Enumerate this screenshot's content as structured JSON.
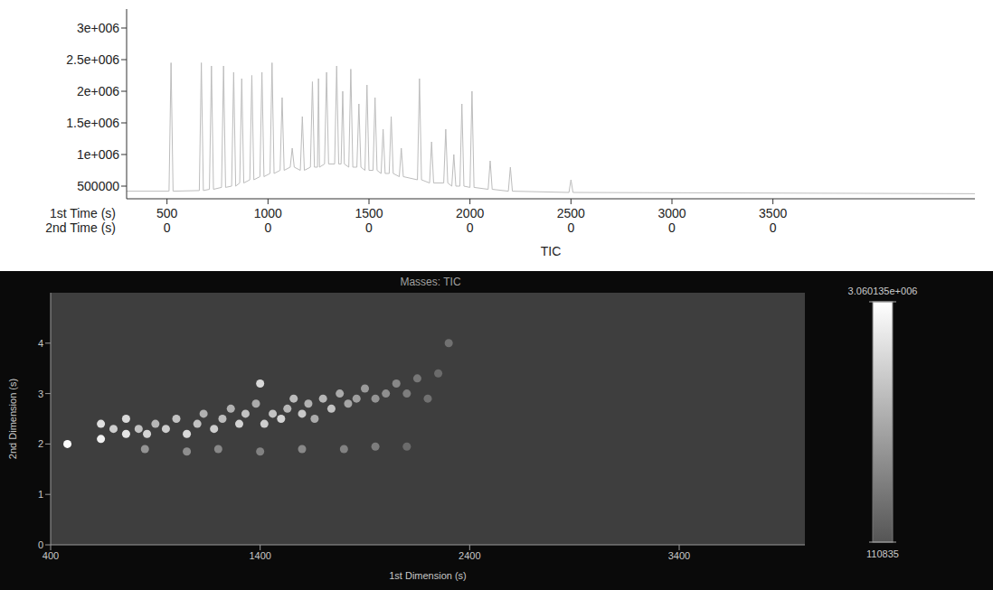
{
  "chart_data": [
    {
      "type": "line",
      "x": [
        300,
        510,
        520,
        530,
        660,
        670,
        680,
        710,
        720,
        730,
        770,
        780,
        790,
        820,
        830,
        840,
        860,
        870,
        880,
        910,
        920,
        930,
        960,
        970,
        980,
        1010,
        1020,
        1030,
        1060,
        1070,
        1080,
        1110,
        1120,
        1130,
        1160,
        1170,
        1180,
        1210,
        1220,
        1230,
        1245,
        1250,
        1255,
        1280,
        1290,
        1300,
        1330,
        1340,
        1350,
        1362,
        1370,
        1378,
        1400,
        1410,
        1420,
        1440,
        1450,
        1460,
        1480,
        1490,
        1500,
        1520,
        1530,
        1540,
        1560,
        1570,
        1580,
        1600,
        1610,
        1620,
        1650,
        1660,
        1670,
        1740,
        1750,
        1760,
        1800,
        1810,
        1820,
        1870,
        1880,
        1890,
        1910,
        1920,
        1930,
        1950,
        1960,
        1970,
        2000,
        2010,
        2020,
        2090,
        2100,
        2110,
        2190,
        2200,
        2210,
        2490,
        2500,
        2510,
        4500
      ],
      "values": [
        420000,
        420000,
        2450000,
        420000,
        430000,
        2450000,
        430000,
        450000,
        2400000,
        450000,
        480000,
        2400000,
        480000,
        500000,
        2300000,
        500000,
        550000,
        2200000,
        550000,
        600000,
        2250000,
        600000,
        650000,
        2300000,
        650000,
        700000,
        2450000,
        700000,
        750000,
        1900000,
        750000,
        800000,
        1100000,
        800000,
        750000,
        1600000,
        750000,
        800000,
        2150000,
        800000,
        800000,
        2200000,
        800000,
        850000,
        2300000,
        850000,
        850000,
        2400000,
        850000,
        850000,
        2000000,
        850000,
        800000,
        2350000,
        800000,
        800000,
        1800000,
        800000,
        750000,
        2100000,
        750000,
        750000,
        1900000,
        750000,
        700000,
        1400000,
        700000,
        700000,
        1600000,
        700000,
        650000,
        1100000,
        650000,
        600000,
        2200000,
        600000,
        550000,
        1200000,
        550000,
        550000,
        1400000,
        550000,
        500000,
        1000000,
        500000,
        500000,
        1800000,
        500000,
        480000,
        2000000,
        480000,
        450000,
        900000,
        450000,
        420000,
        800000,
        420000,
        400000,
        600000,
        400000,
        380000
      ],
      "color": "#bdbdbd",
      "xlim": [
        300,
        4500
      ],
      "xticks": [
        500,
        1000,
        1500,
        2000,
        2500,
        3000,
        3500
      ],
      "x_second_row": [
        0,
        0,
        0,
        0,
        0,
        0,
        0
      ],
      "x_row_labels": [
        "1st Time (s)",
        "2nd Time (s)"
      ],
      "xlabel": "TIC",
      "ylim": [
        300000,
        3300000
      ],
      "yticks": [
        500000,
        {
          "value": 1000000,
          "label": "1e+006"
        },
        {
          "value": 1500000,
          "label": "1.5e+006"
        },
        {
          "value": 2000000,
          "label": "2e+006"
        },
        {
          "value": 2500000,
          "label": "2.5e+006"
        },
        {
          "value": 3000000,
          "label": "3e+006"
        }
      ],
      "grid": false
    },
    {
      "type": "scatter",
      "title": "Masses: TIC",
      "xlabel": "1st Dimension (s)",
      "ylabel": "2nd Dimension (s)",
      "x": [
        480,
        640,
        640,
        700,
        760,
        760,
        820,
        860,
        900,
        950,
        1000,
        1050,
        1100,
        1130,
        1180,
        1220,
        1260,
        1300,
        1330,
        1380,
        1400,
        1420,
        1460,
        1500,
        1530,
        1560,
        1600,
        1630,
        1660,
        1700,
        1740,
        1780,
        1820,
        1860,
        1900,
        1950,
        2000,
        2050,
        2100,
        2150,
        2250,
        2300,
        2200,
        850,
        1050,
        1200,
        1400,
        1600,
        1800,
        1950,
        2100
      ],
      "y": [
        2.0,
        2.4,
        2.1,
        2.3,
        2.5,
        2.2,
        2.3,
        2.2,
        2.4,
        2.3,
        2.5,
        2.2,
        2.4,
        2.6,
        2.3,
        2.5,
        2.7,
        2.4,
        2.6,
        2.8,
        3.2,
        2.4,
        2.6,
        2.5,
        2.7,
        2.9,
        2.6,
        2.8,
        2.5,
        2.9,
        2.7,
        3.0,
        2.8,
        2.9,
        3.1,
        2.9,
        3.0,
        3.2,
        3.0,
        3.3,
        3.4,
        4.0,
        2.9,
        1.9,
        1.85,
        1.9,
        1.85,
        1.9,
        1.9,
        1.95,
        1.95
      ],
      "intensity": [
        3000000,
        2500000,
        2800000,
        2200000,
        2400000,
        2600000,
        2000000,
        2300000,
        1800000,
        2200000,
        2000000,
        2400000,
        2000000,
        1700000,
        2200000,
        1900000,
        1700000,
        2300000,
        2000000,
        1600000,
        2400000,
        2200000,
        2000000,
        2300000,
        1800000,
        1900000,
        2100000,
        1700000,
        1600000,
        1800000,
        2000000,
        1600000,
        1500000,
        1400000,
        1300000,
        1200000,
        1100000,
        1000000,
        800000,
        700000,
        500000,
        600000,
        600000,
        1200000,
        1100000,
        1000000,
        900000,
        1000000,
        900000,
        800000,
        500000
      ],
      "xlim": [
        400,
        4000
      ],
      "xticks": [
        400,
        1400,
        2400,
        3400
      ],
      "ylim": [
        0,
        5
      ],
      "yticks": [
        0,
        1,
        2,
        3,
        4
      ],
      "colorbar_range": [
        110835,
        3060135
      ],
      "colorbar_ticks": [
        110835,
        {
          "value": 3060135,
          "label": "3.060135e+006"
        }
      ],
      "grid": false
    }
  ]
}
